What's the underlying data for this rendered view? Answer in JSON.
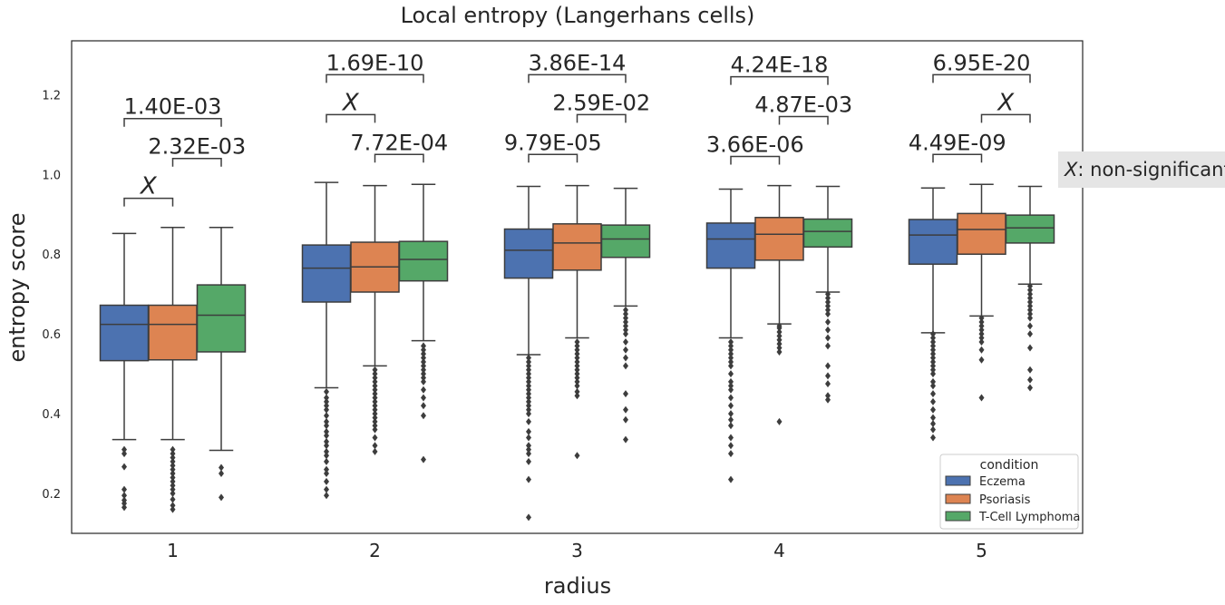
{
  "chart_data": {
    "type": "box",
    "title": "Local entropy (Langerhans cells)",
    "xlabel": "radius",
    "ylabel": "entropy score",
    "categories": [
      "1",
      "2",
      "3",
      "4",
      "5"
    ],
    "ylim": [
      0.1,
      1.335
    ],
    "yticks": [
      "0.2",
      "0.4",
      "0.6",
      "0.8",
      "1.0",
      "1.2"
    ],
    "grid": false,
    "legend": {
      "title": "condition",
      "position": "bottom-right",
      "entries": [
        "Eczema",
        "Psoriasis",
        "T-Cell Lymphoma"
      ]
    },
    "series": [
      {
        "name": "Eczema",
        "color": "#4c72b0",
        "boxes": [
          {
            "q1": 0.533,
            "median": 0.624,
            "q3": 0.672,
            "whisker_low": 0.335,
            "whisker_high": 0.852,
            "outliers": [
              0.165,
              0.175,
              0.183,
              0.195,
              0.21,
              0.267,
              0.3,
              0.31
            ]
          },
          {
            "q1": 0.68,
            "median": 0.765,
            "q3": 0.823,
            "whisker_low": 0.465,
            "whisker_high": 0.98,
            "outliers": [
              0.195,
              0.21,
              0.23,
              0.25,
              0.26,
              0.28,
              0.295,
              0.305,
              0.32,
              0.33,
              0.345,
              0.355,
              0.37,
              0.38,
              0.395,
              0.41,
              0.42,
              0.43,
              0.44,
              0.455
            ]
          },
          {
            "q1": 0.74,
            "median": 0.81,
            "q3": 0.863,
            "whisker_low": 0.548,
            "whisker_high": 0.97,
            "outliers": [
              0.14,
              0.235,
              0.28,
              0.3,
              0.31,
              0.32,
              0.34,
              0.355,
              0.38,
              0.4,
              0.41,
              0.42,
              0.43,
              0.44,
              0.45,
              0.46,
              0.47,
              0.48,
              0.49,
              0.5,
              0.51,
              0.52,
              0.53,
              0.54
            ]
          },
          {
            "q1": 0.765,
            "median": 0.838,
            "q3": 0.878,
            "whisker_low": 0.59,
            "whisker_high": 0.963,
            "outliers": [
              0.235,
              0.3,
              0.32,
              0.34,
              0.37,
              0.385,
              0.4,
              0.42,
              0.44,
              0.46,
              0.47,
              0.48,
              0.5,
              0.52,
              0.53,
              0.54,
              0.55,
              0.56,
              0.57,
              0.58
            ]
          },
          {
            "q1": 0.775,
            "median": 0.848,
            "q3": 0.887,
            "whisker_low": 0.603,
            "whisker_high": 0.966,
            "outliers": [
              0.34,
              0.36,
              0.375,
              0.39,
              0.41,
              0.43,
              0.45,
              0.47,
              0.48,
              0.5,
              0.51,
              0.52,
              0.53,
              0.54,
              0.55,
              0.56,
              0.57,
              0.58,
              0.59,
              0.6
            ]
          }
        ]
      },
      {
        "name": "Psoriasis",
        "color": "#dd8452",
        "boxes": [
          {
            "q1": 0.535,
            "median": 0.624,
            "q3": 0.672,
            "whisker_low": 0.335,
            "whisker_high": 0.867,
            "outliers": [
              0.16,
              0.17,
              0.185,
              0.2,
              0.21,
              0.22,
              0.23,
              0.24,
              0.25,
              0.26,
              0.27,
              0.28,
              0.29,
              0.3,
              0.31
            ]
          },
          {
            "q1": 0.705,
            "median": 0.768,
            "q3": 0.83,
            "whisker_low": 0.52,
            "whisker_high": 0.972,
            "outliers": [
              0.305,
              0.32,
              0.34,
              0.36,
              0.37,
              0.38,
              0.39,
              0.4,
              0.41,
              0.42,
              0.43,
              0.44,
              0.45,
              0.46,
              0.47,
              0.48,
              0.49,
              0.5,
              0.51
            ]
          },
          {
            "q1": 0.76,
            "median": 0.828,
            "q3": 0.876,
            "whisker_low": 0.59,
            "whisker_high": 0.972,
            "outliers": [
              0.295,
              0.445,
              0.455,
              0.47,
              0.48,
              0.49,
              0.5,
              0.51,
              0.52,
              0.53,
              0.54,
              0.55,
              0.56,
              0.57,
              0.58
            ]
          },
          {
            "q1": 0.785,
            "median": 0.85,
            "q3": 0.892,
            "whisker_low": 0.625,
            "whisker_high": 0.972,
            "outliers": [
              0.38,
              0.555,
              0.565,
              0.575,
              0.585,
              0.595,
              0.605,
              0.615,
              0.62
            ]
          },
          {
            "q1": 0.8,
            "median": 0.862,
            "q3": 0.902,
            "whisker_low": 0.645,
            "whisker_high": 0.975,
            "outliers": [
              0.44,
              0.535,
              0.56,
              0.58,
              0.59,
              0.6,
              0.61,
              0.62,
              0.63,
              0.64
            ]
          }
        ]
      },
      {
        "name": "T-Cell Lymphoma",
        "color": "#55a868",
        "boxes": [
          {
            "q1": 0.555,
            "median": 0.647,
            "q3": 0.723,
            "whisker_low": 0.308,
            "whisker_high": 0.867,
            "outliers": [
              0.19,
              0.25,
              0.265
            ]
          },
          {
            "q1": 0.733,
            "median": 0.787,
            "q3": 0.832,
            "whisker_low": 0.583,
            "whisker_high": 0.975,
            "outliers": [
              0.285,
              0.395,
              0.42,
              0.44,
              0.46,
              0.48,
              0.49,
              0.5,
              0.51,
              0.52,
              0.53,
              0.54,
              0.55,
              0.56,
              0.57
            ]
          },
          {
            "q1": 0.792,
            "median": 0.838,
            "q3": 0.873,
            "whisker_low": 0.67,
            "whisker_high": 0.965,
            "outliers": [
              0.335,
              0.385,
              0.41,
              0.45,
              0.52,
              0.54,
              0.56,
              0.58,
              0.6,
              0.61,
              0.62,
              0.63,
              0.64,
              0.65,
              0.66
            ]
          },
          {
            "q1": 0.818,
            "median": 0.857,
            "q3": 0.888,
            "whisker_low": 0.705,
            "whisker_high": 0.97,
            "outliers": [
              0.435,
              0.445,
              0.475,
              0.495,
              0.52,
              0.57,
              0.59,
              0.61,
              0.63,
              0.65,
              0.66,
              0.67,
              0.68,
              0.69,
              0.7
            ]
          },
          {
            "q1": 0.828,
            "median": 0.866,
            "q3": 0.898,
            "whisker_low": 0.725,
            "whisker_high": 0.97,
            "outliers": [
              0.465,
              0.485,
              0.51,
              0.565,
              0.6,
              0.62,
              0.64,
              0.65,
              0.66,
              0.67,
              0.68,
              0.69,
              0.7,
              0.71,
              0.72
            ]
          }
        ]
      }
    ],
    "annotations": [
      {
        "category": "1",
        "from": 0,
        "to": 1,
        "y": 0.94,
        "label": "X",
        "non_significant": true
      },
      {
        "category": "1",
        "from": 1,
        "to": 2,
        "y": 1.04,
        "label": "2.32E-03",
        "non_significant": false
      },
      {
        "category": "1",
        "from": 0,
        "to": 2,
        "y": 1.14,
        "label": "1.40E-03",
        "non_significant": false
      },
      {
        "category": "2",
        "from": 1,
        "to": 2,
        "y": 1.05,
        "label": "7.72E-04",
        "non_significant": false
      },
      {
        "category": "2",
        "from": 0,
        "to": 1,
        "y": 1.15,
        "label": "X",
        "non_significant": true
      },
      {
        "category": "2",
        "from": 0,
        "to": 2,
        "y": 1.25,
        "label": "1.69E-10",
        "non_significant": false
      },
      {
        "category": "3",
        "from": 0,
        "to": 1,
        "y": 1.05,
        "label": "9.79E-05",
        "non_significant": false
      },
      {
        "category": "3",
        "from": 1,
        "to": 2,
        "y": 1.15,
        "label": "2.59E-02",
        "non_significant": false
      },
      {
        "category": "3",
        "from": 0,
        "to": 2,
        "y": 1.25,
        "label": "3.86E-14",
        "non_significant": false
      },
      {
        "category": "4",
        "from": 0,
        "to": 1,
        "y": 1.045,
        "label": "3.66E-06",
        "non_significant": false
      },
      {
        "category": "4",
        "from": 1,
        "to": 2,
        "y": 1.145,
        "label": "4.87E-03",
        "non_significant": false
      },
      {
        "category": "4",
        "from": 0,
        "to": 2,
        "y": 1.245,
        "label": "4.24E-18",
        "non_significant": false
      },
      {
        "category": "5",
        "from": 0,
        "to": 1,
        "y": 1.05,
        "label": "4.49E-09",
        "non_significant": false
      },
      {
        "category": "5",
        "from": 1,
        "to": 2,
        "y": 1.15,
        "label": "X",
        "non_significant": true
      },
      {
        "category": "5",
        "from": 0,
        "to": 2,
        "y": 1.25,
        "label": "6.95E-20",
        "non_significant": false
      }
    ],
    "side_note": {
      "symbol": "X",
      "text": ": non-significant"
    }
  }
}
